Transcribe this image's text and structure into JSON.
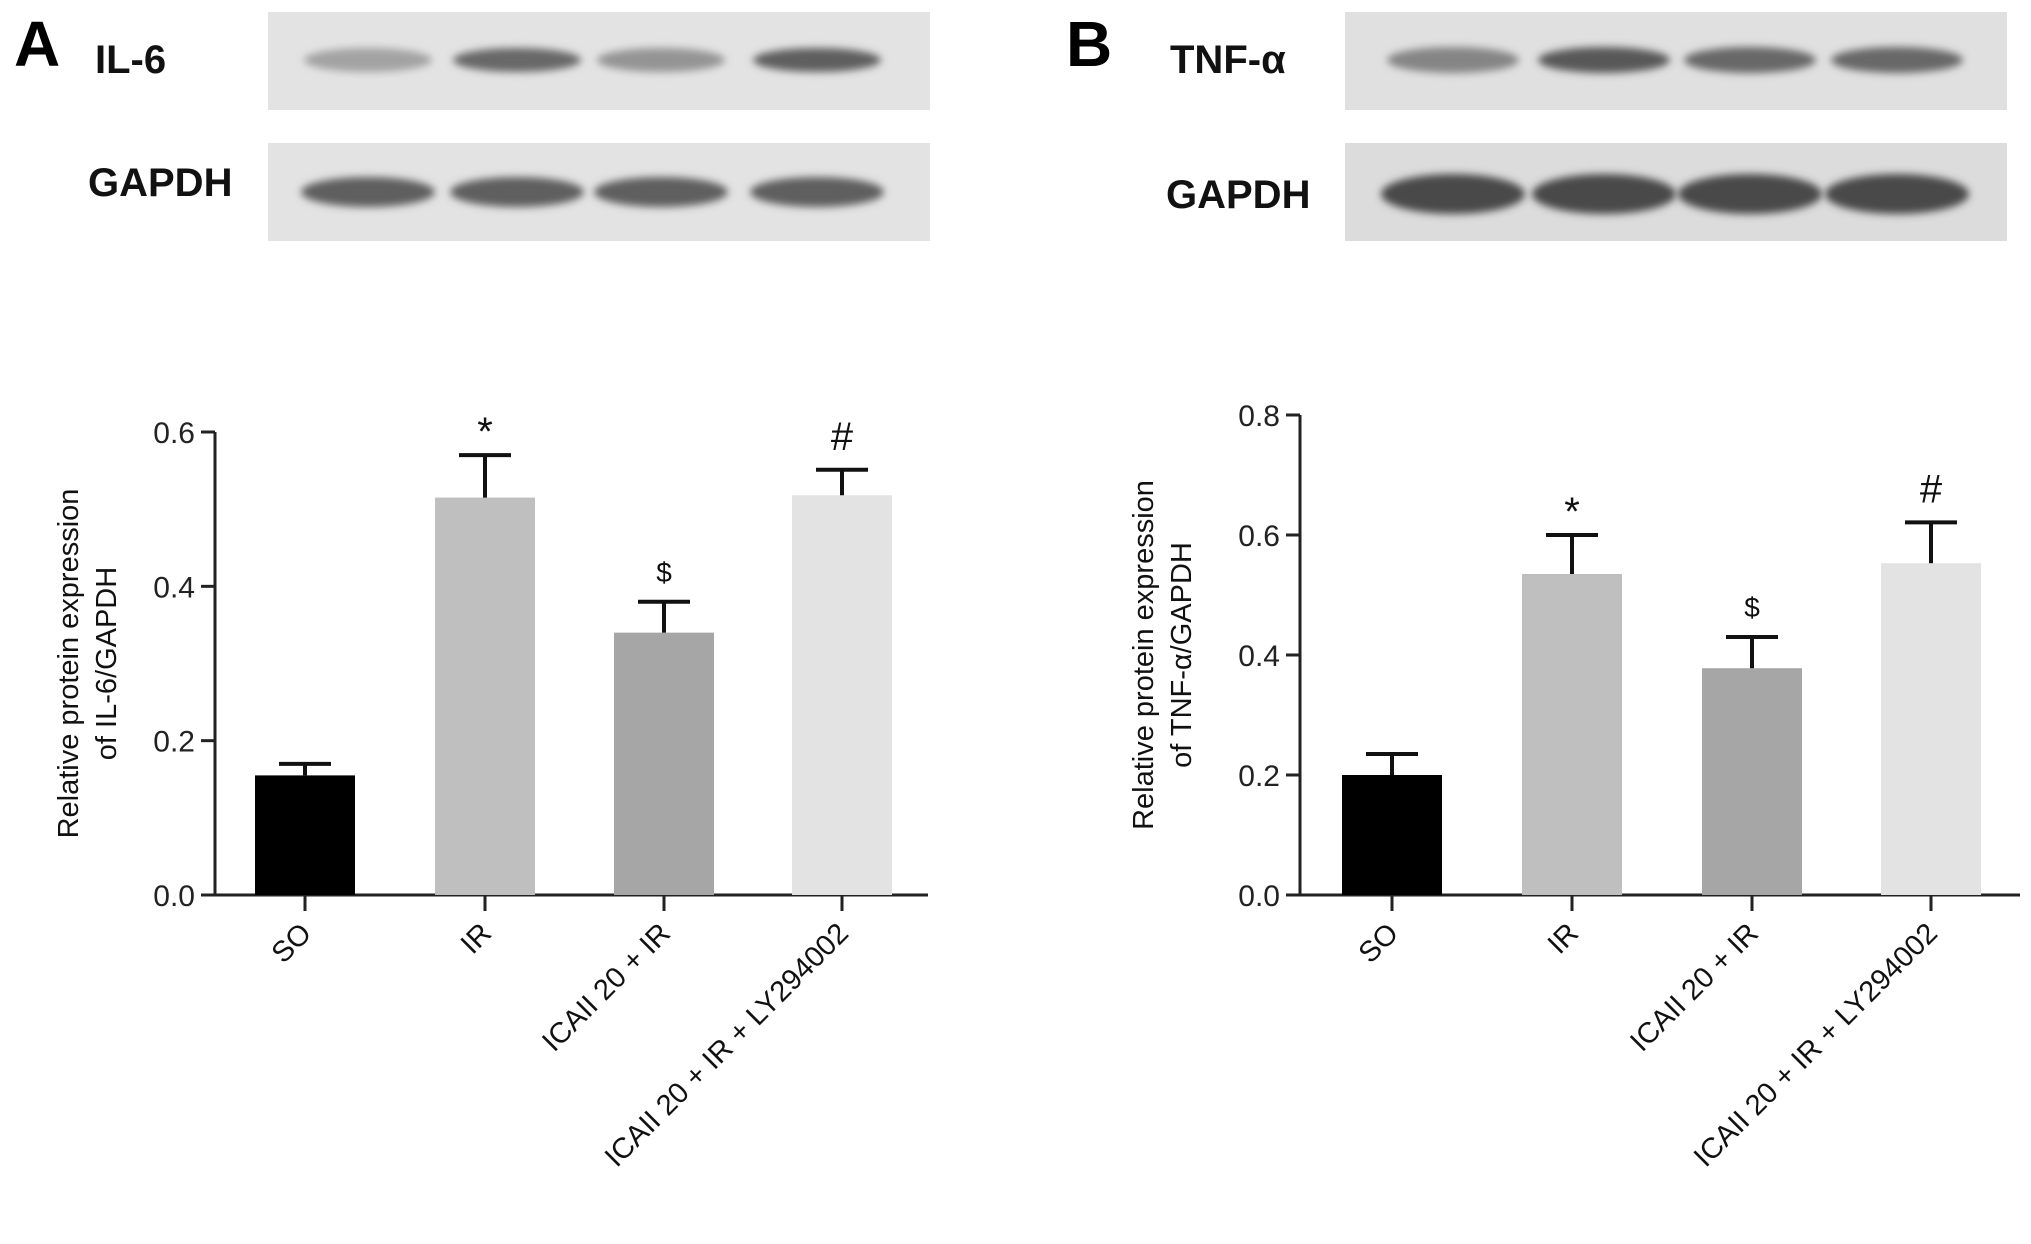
{
  "panels": [
    {
      "letter": "A",
      "blot": {
        "target_label": "IL-6",
        "control_label": "GAPDH"
      },
      "target_band_intensity": [
        0.35,
        0.75,
        0.45,
        0.8
      ],
      "control_band_intensity": [
        0.8,
        0.8,
        0.8,
        0.8
      ]
    },
    {
      "letter": "B",
      "blot": {
        "target_label": "TNF-α",
        "control_label": "GAPDH"
      },
      "target_band_intensity": [
        0.55,
        0.85,
        0.75,
        0.75
      ],
      "control_band_intensity": [
        0.95,
        0.95,
        0.95,
        0.95
      ]
    }
  ],
  "chart_data": [
    {
      "type": "bar",
      "categories": [
        "SO",
        "IR",
        "ICAII 20 + IR",
        "ICAII 20 + IR + LY294002"
      ],
      "values": [
        0.155,
        0.515,
        0.34,
        0.518
      ],
      "errors": [
        0.015,
        0.055,
        0.04,
        0.033
      ],
      "significance": [
        "",
        "*",
        "$",
        "#"
      ],
      "bar_colors": [
        "#000000",
        "#bfbfbf",
        "#a6a6a6",
        "#e3e3e3"
      ],
      "ylabel_lines": [
        "Relative protein expression",
        "of IL-6/GAPDH"
      ],
      "ylim": [
        0,
        0.6
      ],
      "yticks": [
        "0.0",
        "0.2",
        "0.4",
        "0.6"
      ],
      "ytick_values": [
        0,
        0.2,
        0.4,
        0.6
      ]
    },
    {
      "type": "bar",
      "categories": [
        "SO",
        "IR",
        "ICAII 20 + IR",
        "ICAII 20 + IR + LY294002"
      ],
      "values": [
        0.2,
        0.535,
        0.378,
        0.553
      ],
      "errors": [
        0.035,
        0.065,
        0.052,
        0.068
      ],
      "significance": [
        "",
        "*",
        "$",
        "#"
      ],
      "bar_colors": [
        "#000000",
        "#bfbfbf",
        "#a6a6a6",
        "#e3e3e3"
      ],
      "ylabel_lines": [
        "Relative protein expression",
        "of TNF-α/GAPDH"
      ],
      "ylim": [
        0,
        0.8
      ],
      "yticks": [
        "0.0",
        "0.2",
        "0.4",
        "0.6",
        "0.8"
      ],
      "ytick_values": [
        0,
        0.2,
        0.4,
        0.6,
        0.8
      ]
    }
  ]
}
